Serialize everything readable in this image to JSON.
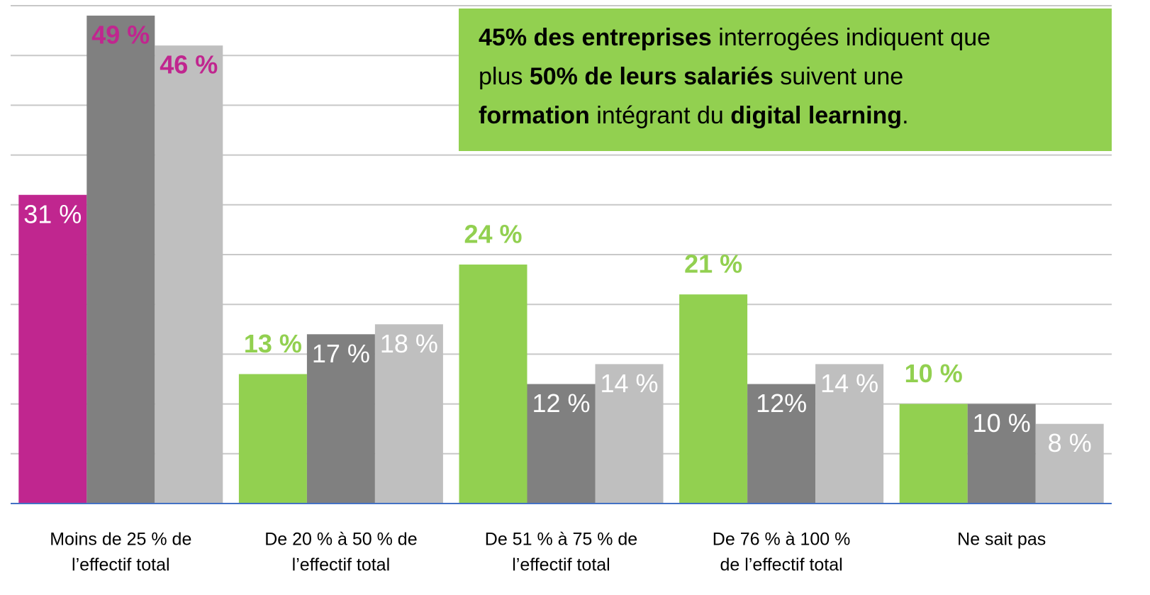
{
  "chart_data": {
    "type": "bar",
    "categories": [
      [
        "Moins de 25 % de",
        "l’effectif total"
      ],
      [
        "De 20 % à 50 % de",
        "l’effectif total"
      ],
      [
        "De 51 % à 75 % de",
        "l’effectif total"
      ],
      [
        "De 76 % à 100 %",
        "de l’effectif total"
      ],
      [
        "Ne sait pas"
      ]
    ],
    "series": [
      {
        "colors": [
          "#c0268f",
          "#92d050",
          "#92d050",
          "#92d050",
          "#92d050"
        ],
        "label_colors": [
          "#ffffff",
          "#92d050",
          "#92d050",
          "#92d050",
          "#92d050"
        ],
        "values": [
          31,
          13,
          24,
          21,
          10
        ],
        "value_labels": [
          "31 %",
          "13 %",
          "24 %",
          "21 %",
          "10 %"
        ]
      },
      {
        "color": "#808080",
        "label_colors": [
          "#c0268f",
          "#ffffff",
          "#ffffff",
          "#ffffff",
          "#ffffff"
        ],
        "values": [
          49,
          17,
          12,
          12,
          10
        ],
        "value_labels": [
          "49 %",
          "17 %",
          "12 %",
          "12%",
          "10 %"
        ]
      },
      {
        "color": "#bfbfbf",
        "label_colors": [
          "#c0268f",
          "#ffffff",
          "#ffffff",
          "#ffffff",
          "#ffffff"
        ],
        "values": [
          46,
          18,
          14,
          14,
          8
        ],
        "value_labels": [
          "46 %",
          "18 %",
          "14 %",
          "14 %",
          "8 %"
        ]
      }
    ],
    "ylim": [
      0,
      50
    ],
    "yticks": [
      0,
      5,
      10,
      15,
      20,
      25,
      30,
      35,
      40,
      45,
      50
    ],
    "grid": true,
    "annotation": {
      "color": "#92d050",
      "lines": [
        [
          {
            "text": "45% des entreprises",
            "bold": true
          },
          {
            "text": " interrogées indiquent que",
            "bold": false
          }
        ],
        [
          {
            "text": "plus ",
            "bold": false
          },
          {
            "text": "50% de leurs salariés",
            "bold": true
          },
          {
            "text": " suivent une",
            "bold": false
          }
        ],
        [
          {
            "text": "formation",
            "bold": true
          },
          {
            "text": " intégrant du ",
            "bold": false
          },
          {
            "text": "digital learning",
            "bold": true
          },
          {
            "text": ".",
            "bold": false
          }
        ]
      ]
    }
  }
}
